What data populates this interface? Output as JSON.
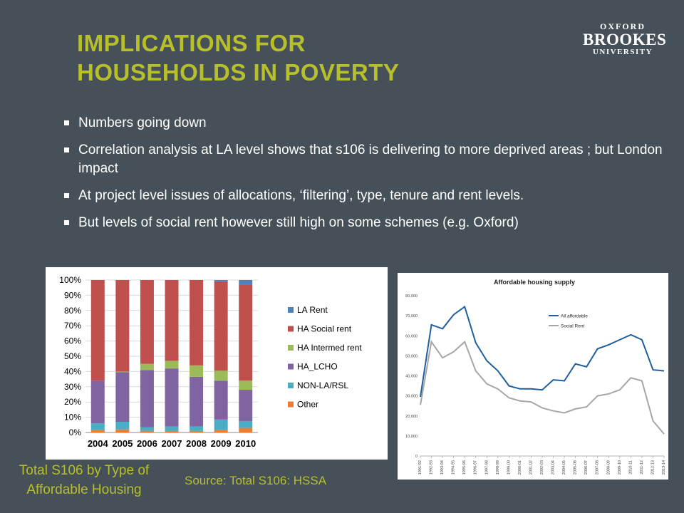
{
  "slide": {
    "title_line1": "IMPLICATIONS FOR",
    "title_line2": "HOUSEHOLDS IN POVERTY",
    "logo": {
      "line1": "OXFORD",
      "line2": "BROOKES",
      "line3": "UNIVERSITY"
    },
    "bullets": [
      "Numbers going down",
      "Correlation analysis at LA level shows that s106 is  delivering to more deprived areas ; but  London impact",
      "At project level issues of allocations, ‘filtering’, type, tenure and rent levels.",
      "But levels of social rent however still high on some schemes (e.g. Oxford)"
    ],
    "caption_left_line1": "Total S106 by Type of",
    "caption_left_line2": "Affordable Housing",
    "caption_source": "Source: Total S106: HSSA",
    "colors": {
      "background": "#465059",
      "title": "#b7bf2a",
      "text": "#ffffff"
    }
  },
  "chart_data": [
    {
      "type": "bar",
      "stacked": true,
      "categories": [
        "2004",
        "2005",
        "2006",
        "2007",
        "2008",
        "2009",
        "2010"
      ],
      "ylim": [
        0,
        100
      ],
      "y_ticks": [
        "0%",
        "10%",
        "20%",
        "30%",
        "40%",
        "50%",
        "60%",
        "70%",
        "80%",
        "90%",
        "100%"
      ],
      "legend_position": "right",
      "series": [
        {
          "name": "Other",
          "color": "#ed7d31",
          "values": [
            1.5,
            2,
            1,
            1,
            1,
            1.5,
            3
          ]
        },
        {
          "name": "NON-LA/RSL",
          "color": "#4bacc6",
          "values": [
            4.5,
            5,
            2.5,
            3,
            3,
            7,
            4.5
          ]
        },
        {
          "name": "HA_LCHO",
          "color": "#8064a2",
          "values": [
            28,
            32.5,
            37.5,
            38,
            32.5,
            25.5,
            20.5
          ]
        },
        {
          "name": "HA Intermed rent",
          "color": "#9bbb59",
          "values": [
            0,
            0.5,
            4,
            5,
            7.5,
            6.5,
            6
          ]
        },
        {
          "name": "HA Social rent",
          "color": "#c0504d",
          "values": [
            66,
            60,
            55,
            53,
            56,
            58.5,
            63
          ]
        },
        {
          "name": "LA Rent",
          "color": "#4f81bd",
          "values": [
            0,
            0,
            0,
            0,
            0,
            1,
            3
          ]
        }
      ],
      "legend_order": [
        "LA Rent",
        "HA Social rent",
        "HA Intermed rent",
        "HA_LCHO",
        "NON-LA/RSL",
        "Other"
      ]
    },
    {
      "type": "line",
      "title": "Affordable housing supply",
      "x": [
        "1991-92",
        "1992-93",
        "1993-94",
        "1994-95",
        "1995-96",
        "1996-97",
        "1997-98",
        "1998-99",
        "1999-00",
        "2000-01",
        "2001-02",
        "2002-03",
        "2003-04",
        "2004-05",
        "2005-06",
        "2006-07",
        "2007-08",
        "2008-09",
        "2009-10",
        "2010-11",
        "2011-12",
        "2012-13",
        "2013-14"
      ],
      "ylim": [
        0,
        80000
      ],
      "y_ticks": [
        "0",
        "10,000",
        "20,000",
        "30,000",
        "40,000",
        "50,000",
        "60,000",
        "70,000",
        "80,000"
      ],
      "legend_position": "top-right",
      "series": [
        {
          "name": "All affordable",
          "color": "#1f5f9e",
          "values": [
            29500,
            65500,
            63500,
            70500,
            74500,
            56500,
            47500,
            42500,
            35000,
            33500,
            33500,
            33000,
            38000,
            37500,
            46000,
            44500,
            53500,
            55500,
            58000,
            60500,
            58000,
            43000,
            42500
          ]
        },
        {
          "name": "Social Rent",
          "color": "#a6a6a6",
          "values": [
            25500,
            57000,
            49000,
            52000,
            57000,
            42500,
            36000,
            33500,
            29000,
            27500,
            27000,
            24000,
            22500,
            21500,
            23500,
            24500,
            30000,
            31000,
            33000,
            39000,
            37500,
            17500,
            11000
          ]
        }
      ]
    }
  ]
}
